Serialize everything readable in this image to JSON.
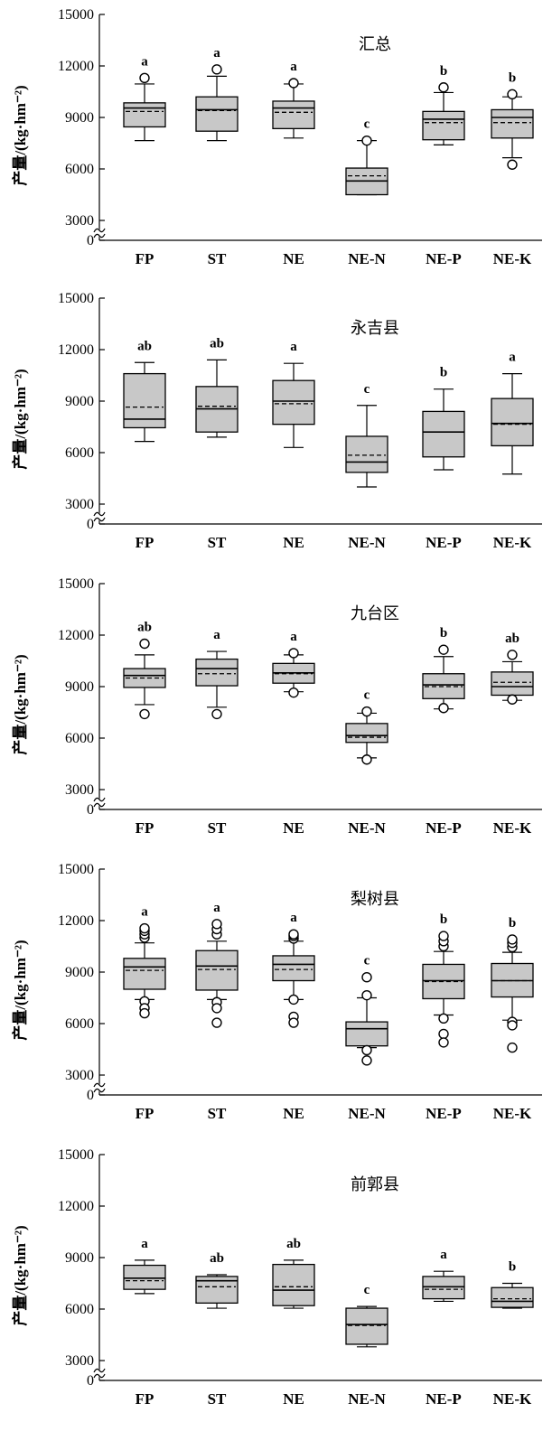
{
  "chart_data": [
    {
      "type": "box",
      "title": "汇总",
      "ylabel": "产量/(kg·hm⁻²)",
      "yticks": [
        15000,
        12000,
        9000,
        6000,
        3000,
        0
      ],
      "ylim": [
        3000,
        15000
      ],
      "axis_break": true,
      "categories": [
        "FP",
        "ST",
        "NE",
        "NE-N",
        "NE-P",
        "NE-K"
      ],
      "boxes": [
        {
          "q1": 8450,
          "median": 9550,
          "q3": 9850,
          "mean": 9350,
          "whisker_low": 7650,
          "whisker_high": 10950,
          "outliers": [
            11300
          ],
          "sig": "a"
        },
        {
          "q1": 8200,
          "median": 9450,
          "q3": 10200,
          "mean": 9400,
          "whisker_low": 7650,
          "whisker_high": 11400,
          "outliers": [
            11800
          ],
          "sig": "a"
        },
        {
          "q1": 8350,
          "median": 9550,
          "q3": 9950,
          "mean": 9300,
          "whisker_low": 7800,
          "whisker_high": 10950,
          "outliers": [
            11000
          ],
          "sig": "a"
        },
        {
          "q1": 4500,
          "median": 5300,
          "q3": 6050,
          "mean": 5600,
          "whisker_low": 4500,
          "whisker_high": 7650,
          "outliers": [
            7650
          ],
          "sig": "c"
        },
        {
          "q1": 7700,
          "median": 8900,
          "q3": 9350,
          "mean": 8700,
          "whisker_low": 7400,
          "whisker_high": 10450,
          "outliers": [
            10750
          ],
          "sig": "b"
        },
        {
          "q1": 7800,
          "median": 9000,
          "q3": 9450,
          "mean": 8700,
          "whisker_low": 6650,
          "whisker_high": 10200,
          "outliers": [
            10350,
            6250
          ],
          "sig": "b"
        }
      ]
    },
    {
      "type": "box",
      "title": "永吉县",
      "ylabel": "产量/(kg·hm⁻²)",
      "yticks": [
        15000,
        12000,
        9000,
        6000,
        3000,
        0
      ],
      "ylim": [
        3000,
        15000
      ],
      "axis_break": true,
      "categories": [
        "FP",
        "ST",
        "NE",
        "NE-N",
        "NE-P",
        "NE-K"
      ],
      "boxes": [
        {
          "q1": 7450,
          "median": 7950,
          "q3": 10600,
          "mean": 8650,
          "whisker_low": 6650,
          "whisker_high": 11250,
          "outliers": [],
          "sig": "ab"
        },
        {
          "q1": 7200,
          "median": 8550,
          "q3": 9850,
          "mean": 8700,
          "whisker_low": 6900,
          "whisker_high": 11400,
          "outliers": [],
          "sig": "ab"
        },
        {
          "q1": 7650,
          "median": 9000,
          "q3": 10200,
          "mean": 8850,
          "whisker_low": 6300,
          "whisker_high": 11200,
          "outliers": [],
          "sig": "a"
        },
        {
          "q1": 4850,
          "median": 5450,
          "q3": 6950,
          "mean": 5850,
          "whisker_low": 4000,
          "whisker_high": 8750,
          "outliers": [],
          "sig": "c"
        },
        {
          "q1": 5750,
          "median": 7200,
          "q3": 8400,
          "mean": 7200,
          "whisker_low": 5000,
          "whisker_high": 9700,
          "outliers": [],
          "sig": "b"
        },
        {
          "q1": 6400,
          "median": 7700,
          "q3": 9150,
          "mean": 7650,
          "whisker_low": 4750,
          "whisker_high": 10600,
          "outliers": [],
          "sig": "a"
        }
      ]
    },
    {
      "type": "box",
      "title": "九台区",
      "ylabel": "产量/(kg·hm⁻²)",
      "yticks": [
        15000,
        12000,
        9000,
        6000,
        3000,
        0
      ],
      "ylim": [
        3000,
        15000
      ],
      "axis_break": true,
      "categories": [
        "FP",
        "ST",
        "NE",
        "NE-N",
        "NE-P",
        "NE-K"
      ],
      "boxes": [
        {
          "q1": 8950,
          "median": 9650,
          "q3": 10050,
          "mean": 9500,
          "whisker_low": 7950,
          "whisker_high": 10850,
          "outliers": [
            11500,
            7400
          ],
          "sig": "ab"
        },
        {
          "q1": 9050,
          "median": 10050,
          "q3": 10600,
          "mean": 9750,
          "whisker_low": 7800,
          "whisker_high": 11050,
          "outliers": [
            7400
          ],
          "sig": "a"
        },
        {
          "q1": 9200,
          "median": 9800,
          "q3": 10350,
          "mean": 9750,
          "whisker_low": 8700,
          "whisker_high": 10850,
          "outliers": [
            10950,
            8650
          ],
          "sig": "a"
        },
        {
          "q1": 5750,
          "median": 6150,
          "q3": 6850,
          "mean": 6050,
          "whisker_low": 4850,
          "whisker_high": 7450,
          "outliers": [
            7550,
            4750
          ],
          "sig": "c"
        },
        {
          "q1": 8300,
          "median": 9100,
          "q3": 9750,
          "mean": 9000,
          "whisker_low": 7700,
          "whisker_high": 10750,
          "outliers": [
            11150,
            7750
          ],
          "sig": "b"
        },
        {
          "q1": 8500,
          "median": 9000,
          "q3": 9850,
          "mean": 9250,
          "whisker_low": 8200,
          "whisker_high": 10450,
          "outliers": [
            10850,
            8250
          ],
          "sig": "ab"
        }
      ]
    },
    {
      "type": "box",
      "title": "梨树县",
      "ylabel": "产量/(kg·hm⁻²)",
      "yticks": [
        15000,
        12000,
        9000,
        6000,
        3000,
        0
      ],
      "ylim": [
        3000,
        15000
      ],
      "axis_break": true,
      "categories": [
        "FP",
        "ST",
        "NE",
        "NE-N",
        "NE-P",
        "NE-K"
      ],
      "boxes": [
        {
          "q1": 8000,
          "median": 9300,
          "q3": 9800,
          "mean": 9100,
          "whisker_low": 7400,
          "whisker_high": 10700,
          "outliers": [
            11000,
            11200,
            11400,
            11550,
            7300,
            6900,
            6600
          ],
          "sig": "a"
        },
        {
          "q1": 7950,
          "median": 9350,
          "q3": 10250,
          "mean": 9150,
          "whisker_low": 7400,
          "whisker_high": 10800,
          "outliers": [
            11200,
            11500,
            11800,
            7250,
            6900,
            6050
          ],
          "sig": "a"
        },
        {
          "q1": 8500,
          "median": 9450,
          "q3": 9950,
          "mean": 9150,
          "whisker_low": 7400,
          "whisker_high": 10800,
          "outliers": [
            10950,
            11100,
            11200,
            7400,
            6400,
            6050
          ],
          "sig": "a"
        },
        {
          "q1": 4700,
          "median": 5700,
          "q3": 6100,
          "mean": 5700,
          "whisker_low": 4600,
          "whisker_high": 7500,
          "outliers": [
            7650,
            8700,
            4450,
            3850
          ],
          "sig": "c"
        },
        {
          "q1": 7450,
          "median": 8500,
          "q3": 9450,
          "mean": 8450,
          "whisker_low": 6500,
          "whisker_high": 10200,
          "outliers": [
            10500,
            10800,
            11100,
            6300,
            5400,
            4900
          ],
          "sig": "b"
        },
        {
          "q1": 7550,
          "median": 8500,
          "q3": 9500,
          "mean": 8500,
          "whisker_low": 6200,
          "whisker_high": 10150,
          "outliers": [
            10450,
            10700,
            10900,
            6100,
            5900,
            4600
          ],
          "sig": "b"
        }
      ]
    },
    {
      "type": "box",
      "title": "前郭县",
      "ylabel": "产量/(kg·hm⁻²)",
      "yticks": [
        15000,
        12000,
        9000,
        6000,
        3000,
        0
      ],
      "ylim": [
        3000,
        15000
      ],
      "axis_break": true,
      "categories": [
        "FP",
        "ST",
        "NE",
        "NE-N",
        "NE-P",
        "NE-K"
      ],
      "boxes": [
        {
          "q1": 7150,
          "median": 7800,
          "q3": 8550,
          "mean": 7650,
          "whisker_low": 6900,
          "whisker_high": 8850,
          "outliers": [],
          "sig": "a"
        },
        {
          "q1": 6350,
          "median": 7650,
          "q3": 7900,
          "mean": 7300,
          "whisker_low": 6050,
          "whisker_high": 8000,
          "outliers": [],
          "sig": "ab"
        },
        {
          "q1": 6200,
          "median": 7100,
          "q3": 8600,
          "mean": 7300,
          "whisker_low": 6050,
          "whisker_high": 8850,
          "outliers": [],
          "sig": "ab"
        },
        {
          "q1": 3950,
          "median": 5100,
          "q3": 6050,
          "mean": 5050,
          "whisker_low": 3800,
          "whisker_high": 6150,
          "outliers": [],
          "sig": "c"
        },
        {
          "q1": 6600,
          "median": 7300,
          "q3": 7900,
          "mean": 7150,
          "whisker_low": 6450,
          "whisker_high": 8200,
          "outliers": [],
          "sig": "a"
        },
        {
          "q1": 6100,
          "median": 6450,
          "q3": 7250,
          "mean": 6600,
          "whisker_low": 6050,
          "whisker_high": 7500,
          "outliers": [],
          "sig": "b"
        }
      ]
    }
  ]
}
